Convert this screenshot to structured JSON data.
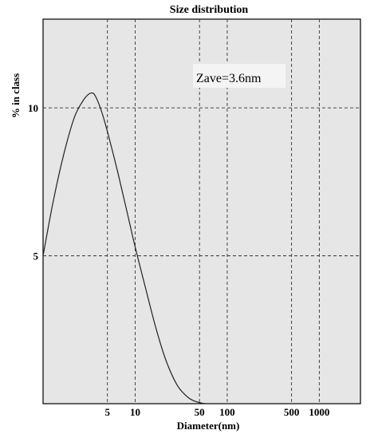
{
  "chart_data": {
    "type": "line",
    "title": "Size distribution",
    "xlabel": "Diameter(nm)",
    "ylabel": "% in class",
    "x_scale": "log",
    "xlim": [
      1,
      2800
    ],
    "ylim": [
      0,
      13
    ],
    "x_ticks": [
      {
        "value": 5,
        "label": "5"
      },
      {
        "value": 10,
        "label": "10"
      },
      {
        "value": 50,
        "label": "50"
      },
      {
        "value": 100,
        "label": "100"
      },
      {
        "value": 500,
        "label": "500"
      },
      {
        "value": 1000,
        "label": "1000"
      }
    ],
    "y_ticks": [
      {
        "value": 5,
        "label": "5"
      },
      {
        "value": 10,
        "label": "10"
      }
    ],
    "grid": "dashed",
    "annotation": "Zave=3.6nm",
    "series": [
      {
        "x": [
          1.0,
          1.3,
          1.7,
          2.2,
          2.8,
          3.3,
          3.7,
          4.4,
          5.3,
          6.5,
          8.0,
          10.0,
          13.0,
          17.0,
          22.0,
          29.0,
          38.0,
          48.0,
          58.0
        ],
        "y": [
          5.0,
          6.9,
          8.5,
          9.7,
          10.3,
          10.5,
          10.4,
          9.8,
          8.9,
          7.8,
          6.6,
          5.3,
          3.9,
          2.5,
          1.4,
          0.6,
          0.2,
          0.05,
          0.0
        ]
      }
    ]
  }
}
